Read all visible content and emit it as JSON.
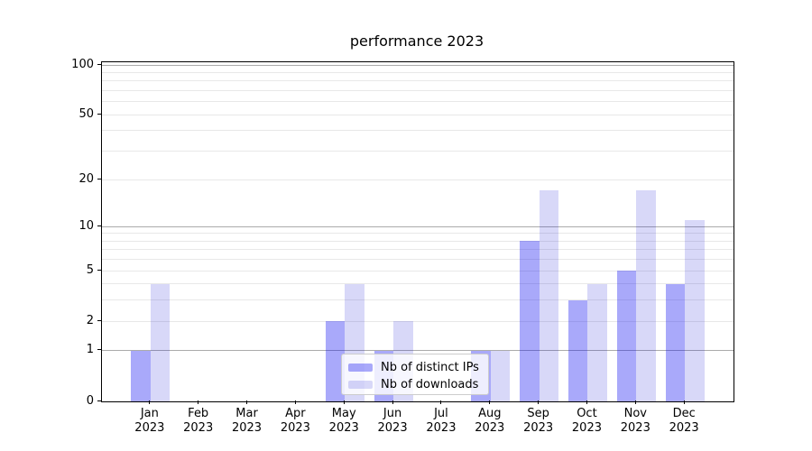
{
  "chart_data": {
    "type": "bar",
    "title": "performance 2023",
    "xlabel": "",
    "ylabel": "",
    "categories": [
      {
        "month": "Jan",
        "year": "2023"
      },
      {
        "month": "Feb",
        "year": "2023"
      },
      {
        "month": "Mar",
        "year": "2023"
      },
      {
        "month": "Apr",
        "year": "2023"
      },
      {
        "month": "May",
        "year": "2023"
      },
      {
        "month": "Jun",
        "year": "2023"
      },
      {
        "month": "Jul",
        "year": "2023"
      },
      {
        "month": "Aug",
        "year": "2023"
      },
      {
        "month": "Sep",
        "year": "2023"
      },
      {
        "month": "Oct",
        "year": "2023"
      },
      {
        "month": "Nov",
        "year": "2023"
      },
      {
        "month": "Dec",
        "year": "2023"
      }
    ],
    "series": [
      {
        "name": "Nb of distinct IPs",
        "color": "rgba(10,10,240,0.35)",
        "values": [
          1,
          0,
          0,
          0,
          2,
          1,
          0,
          1,
          8,
          3,
          5,
          4
        ]
      },
      {
        "name": "Nb of downloads",
        "color": "rgba(10,10,210,0.16)",
        "values": [
          4,
          0,
          0,
          0,
          4,
          2,
          0,
          1,
          17,
          4,
          17,
          11
        ]
      }
    ],
    "yscale": "log1p",
    "ylim": [
      0,
      104
    ],
    "yticks": [
      0,
      1,
      2,
      5,
      10,
      20,
      50,
      100
    ],
    "grid": "horizontal major (1,10,100) and log minor gridlines",
    "legend_position": "lower center",
    "colors": {
      "grid_major": "#ababab",
      "grid_minor": "#e8e8e8",
      "spine": "#000000",
      "text": "#000000",
      "legend_border": "#cccccc",
      "legend_background": "rgba(255,255,255,0.8)",
      "background": "#ffffff"
    }
  }
}
